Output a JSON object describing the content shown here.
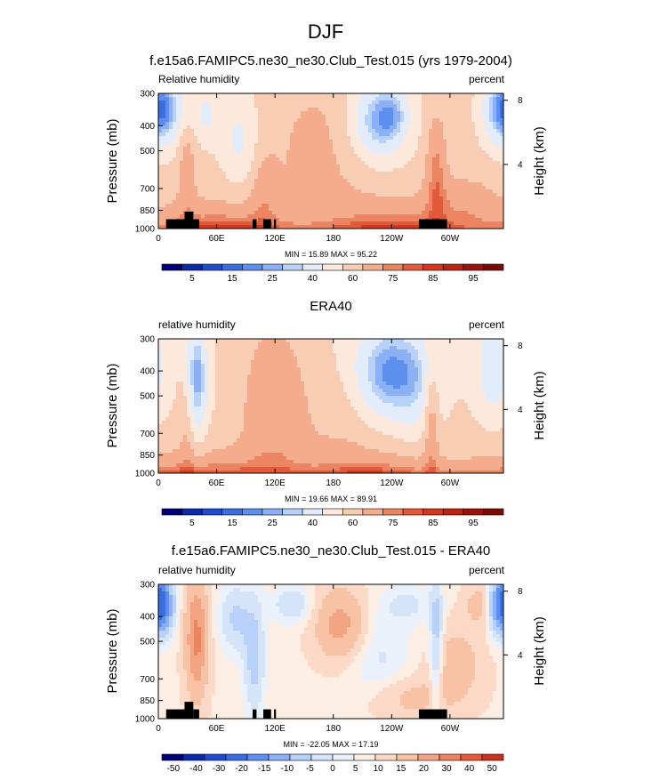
{
  "figure": {
    "title": "DJF"
  },
  "colors": {
    "absolute_levels": [
      "#000078",
      "#0c2aa8",
      "#1f4ccc",
      "#3a6ee0",
      "#5d8ff0",
      "#8bb0f5",
      "#b8d1fa",
      "#e2ecfb",
      "#fde8dc",
      "#f8cdb4",
      "#f4ac8c",
      "#ec8462",
      "#e35a3b",
      "#d5361d",
      "#bb2312",
      "#9b1409",
      "#7a0b05"
    ],
    "diff_levels": [
      "#000078",
      "#0c2aa8",
      "#1f4ccc",
      "#3a6ee0",
      "#5d8ff0",
      "#8bb0f5",
      "#b8d1fa",
      "#d6e4fa",
      "#eaf1fb",
      "#fdeee4",
      "#fbd9c6",
      "#f8c2a5",
      "#f3a482",
      "#ec8462",
      "#e35a3b",
      "#c83020",
      "#a01810",
      "#6e0a05"
    ],
    "topography": "#000000"
  },
  "chart_data": [
    {
      "type": "heatmap",
      "title": "f.e15a6.FAMIPC5.ne30_ne30.Club_Test.015 (yrs 1979-2004)",
      "left_label": "Relative humidity",
      "right_label": "percent",
      "xlabel": "",
      "ylabel": "Pressure (mb)",
      "y2label": "Height (km)",
      "x_ticks": [
        "0",
        "60E",
        "120E",
        "180",
        "120W",
        "60W"
      ],
      "x_tick_values": [
        0,
        60,
        120,
        180,
        240,
        300
      ],
      "xlim": [
        0,
        355
      ],
      "y_ticks": [
        "300",
        "400",
        "500",
        "700",
        "850",
        "1000"
      ],
      "y_tick_values": [
        300,
        400,
        500,
        700,
        850,
        1000
      ],
      "ylim": [
        1000,
        300
      ],
      "y_scale": "log",
      "y2_ticks": [
        "8",
        "4"
      ],
      "minmax_text": "MIN =  15.89  MAX =  95.22",
      "min": 15.89,
      "max": 95.22,
      "colorbar_labels": [
        "5",
        "15",
        "25",
        "40",
        "60",
        "75",
        "85",
        "95"
      ],
      "colorbar_bins": 17,
      "topography": true
    },
    {
      "type": "heatmap",
      "title": "ERA40",
      "left_label": "relative humidity",
      "right_label": "percent",
      "xlabel": "",
      "ylabel": "Pressure (mb)",
      "y2label": "Height (km)",
      "x_ticks": [
        "0",
        "60E",
        "120E",
        "180",
        "120W",
        "60W"
      ],
      "x_tick_values": [
        0,
        60,
        120,
        180,
        240,
        300
      ],
      "xlim": [
        0,
        355
      ],
      "y_ticks": [
        "300",
        "400",
        "500",
        "700",
        "850",
        "1000"
      ],
      "y_tick_values": [
        300,
        400,
        500,
        700,
        850,
        1000
      ],
      "ylim": [
        1000,
        300
      ],
      "y_scale": "log",
      "y2_ticks": [
        "8",
        "4"
      ],
      "minmax_text": "MIN =  19.66  MAX =  89.91",
      "min": 19.66,
      "max": 89.91,
      "colorbar_labels": [
        "5",
        "15",
        "25",
        "40",
        "60",
        "75",
        "85",
        "95"
      ],
      "colorbar_bins": 17,
      "topography": false
    },
    {
      "type": "heatmap",
      "title": "f.e15a6.FAMIPC5.ne30_ne30.Club_Test.015 - ERA40",
      "left_label": "relative humidity",
      "right_label": "percent",
      "xlabel": "",
      "ylabel": "Pressure (mb)",
      "y2label": "Height (km)",
      "x_ticks": [
        "0",
        "60E",
        "120E",
        "180",
        "120W",
        "60W"
      ],
      "x_tick_values": [
        0,
        60,
        120,
        180,
        240,
        300
      ],
      "xlim": [
        0,
        355
      ],
      "y_ticks": [
        "300",
        "400",
        "500",
        "700",
        "850",
        "1000"
      ],
      "y_tick_values": [
        300,
        400,
        500,
        700,
        850,
        1000
      ],
      "ylim": [
        1000,
        300
      ],
      "y_scale": "log",
      "y2_ticks": [
        "8",
        "4"
      ],
      "minmax_text": "MIN = -22.05  MAX =  17.19",
      "min": -22.05,
      "max": 17.19,
      "colorbar_labels": [
        "-50",
        "-40",
        "-30",
        "-20",
        "-15",
        "-10",
        "-5",
        "0",
        "5",
        "10",
        "15",
        "20",
        "30",
        "40",
        "50"
      ],
      "colorbar_bins": 16,
      "topography": true
    }
  ]
}
